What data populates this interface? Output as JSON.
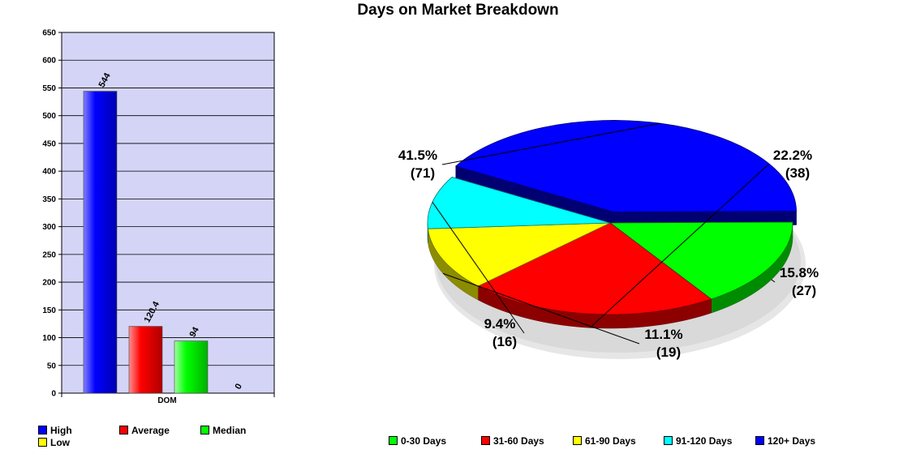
{
  "page_title": "Days on Market Breakdown",
  "chart_data": [
    {
      "type": "bar",
      "title": "",
      "xlabel": "",
      "ylabel": "",
      "categories": [
        "DOM"
      ],
      "ylim": [
        0,
        650
      ],
      "yticks": [
        0,
        50,
        100,
        150,
        200,
        250,
        300,
        350,
        400,
        450,
        500,
        550,
        600,
        650
      ],
      "background": "#d4d4f7",
      "grid": true,
      "legend_position": "bottom",
      "series": [
        {
          "name": "High",
          "values": [
            544
          ],
          "label": "544",
          "color": "#0000ff"
        },
        {
          "name": "Average",
          "values": [
            120.4
          ],
          "label": "120.4",
          "color": "#ff0000"
        },
        {
          "name": "Median",
          "values": [
            94
          ],
          "label": "94",
          "color": "#00ff00"
        },
        {
          "name": "Low",
          "values": [
            0
          ],
          "label": "0",
          "color": "#ffff00"
        }
      ]
    },
    {
      "type": "pie",
      "title": "",
      "legend_position": "bottom",
      "slices": [
        {
          "name": "0-30 Days",
          "value": 27,
          "percent": "15.8%",
          "count": "(27)",
          "color": "#00ff00"
        },
        {
          "name": "31-60 Days",
          "value": 38,
          "percent": "22.2%",
          "count": "(38)",
          "color": "#ff0000"
        },
        {
          "name": "61-90 Days",
          "value": 19,
          "percent": "11.1%",
          "count": "(19)",
          "color": "#ffff00"
        },
        {
          "name": "91-120 Days",
          "value": 16,
          "percent": "9.4%",
          "count": "(16)",
          "color": "#00ffff"
        },
        {
          "name": "120+ Days",
          "value": 71,
          "percent": "41.5%",
          "count": "(71)",
          "color": "#0000ff"
        }
      ]
    }
  ]
}
